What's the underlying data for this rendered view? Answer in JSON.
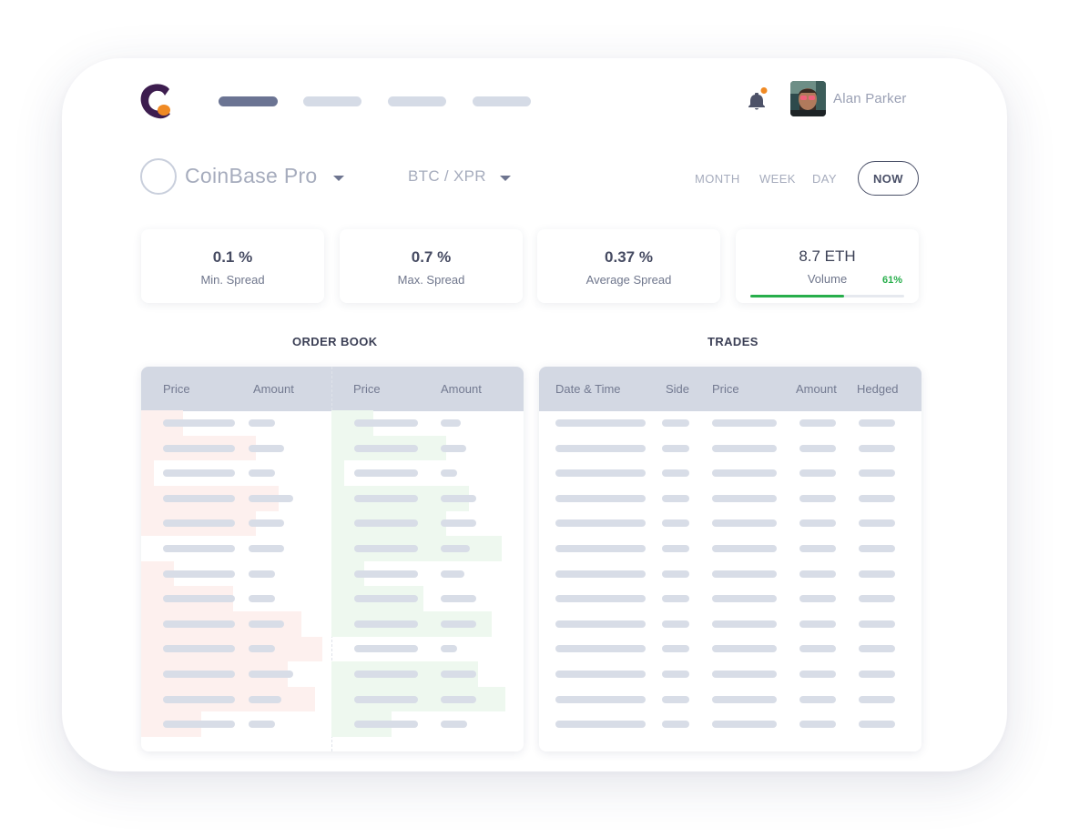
{
  "header": {
    "logo_icon": "app-logo-icon",
    "nav_items": [
      "active",
      "inactive",
      "inactive",
      "inactive"
    ],
    "notification_icon": "bell-icon",
    "user_name": "Alan Parker"
  },
  "selectors": {
    "exchange": "CoinBase Pro",
    "pair": "BTC / XPR",
    "periods": [
      "MONTH",
      "WEEK",
      "DAY"
    ],
    "now_label": "NOW"
  },
  "stats": [
    {
      "value": "0.1 %",
      "label": "Min. Spread"
    },
    {
      "value": "0.7 %",
      "label": "Max. Spread"
    },
    {
      "value": "0.37 %",
      "label": "Average Spread"
    }
  ],
  "volume": {
    "value": "8.7 ETH",
    "label": "Volume",
    "percent_label": "61%",
    "fraction": 0.61
  },
  "order_book": {
    "title": "ORDER BOOK",
    "bid_headers": [
      "Price",
      "Amount"
    ],
    "ask_headers": [
      "Price",
      "Amount"
    ]
  },
  "trades": {
    "title": "TRADES",
    "headers": [
      "Date & Time",
      "Side",
      "Price",
      "Amount",
      "Hedged"
    ]
  },
  "colors": {
    "accent": "#6b7493",
    "bid_depth": "#fdf0ee",
    "ask_depth": "#eef8ef",
    "volume_bar": "#27ae4b",
    "logo_primary": "#3d1d4f",
    "logo_secondary": "#f08a24"
  }
}
